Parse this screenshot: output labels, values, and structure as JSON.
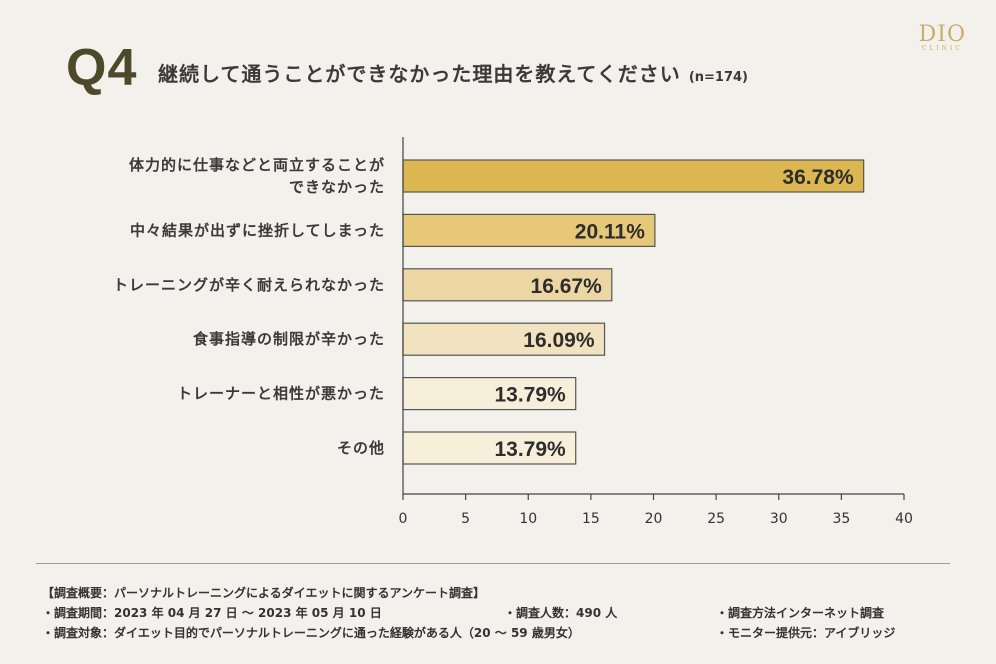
{
  "header": {
    "q_label": "Q4",
    "title": "継続して通うことができなかった理由を教えてください",
    "n": "(n=174)"
  },
  "logo": {
    "word": "DIO",
    "sub": "CLINIC"
  },
  "chart_data": {
    "type": "bar",
    "orientation": "horizontal",
    "categories": [
      [
        "体力的に仕事などと両立することが",
        "できなかった"
      ],
      [
        "中々結果が出ずに挫折してしまった"
      ],
      [
        "トレーニングが辛く耐えられなかった"
      ],
      [
        "食事指導の制限が辛かった"
      ],
      [
        "トレーナーと相性が悪かった"
      ],
      [
        "その他"
      ]
    ],
    "values": [
      36.78,
      20.11,
      16.67,
      16.09,
      13.79,
      13.79
    ],
    "value_labels": [
      "36.78%",
      "20.11%",
      "16.67%",
      "16.09%",
      "13.79%",
      "13.79%"
    ],
    "bar_colors": [
      "#dbb651",
      "#e6c878",
      "#ecd7a4",
      "#f1e2c0",
      "#f8efda",
      "#f8efda"
    ],
    "bar_stroke": "#555555",
    "xlim": [
      0,
      40
    ],
    "xticks": [
      0,
      5,
      10,
      15,
      20,
      25,
      30,
      35,
      40
    ],
    "title": "",
    "xlabel": "",
    "ylabel": "",
    "grid": false
  },
  "summary": {
    "heading": "【調査概要：パーソナルトレーニングによるダイエットに関するアンケート調査】",
    "period": "・調査期間：2023 年 04 月 27 日 ～ 2023 年 05 月 10 日",
    "count": "・調査人数：490 人",
    "method": "・調査方法インターネット調査",
    "target": "・調査対象：ダイエット目的でパーソナルトレーニングに通った経験がある人（20 ～ 59 歳男女）",
    "provider": "・モニター提供元：アイブリッジ"
  }
}
